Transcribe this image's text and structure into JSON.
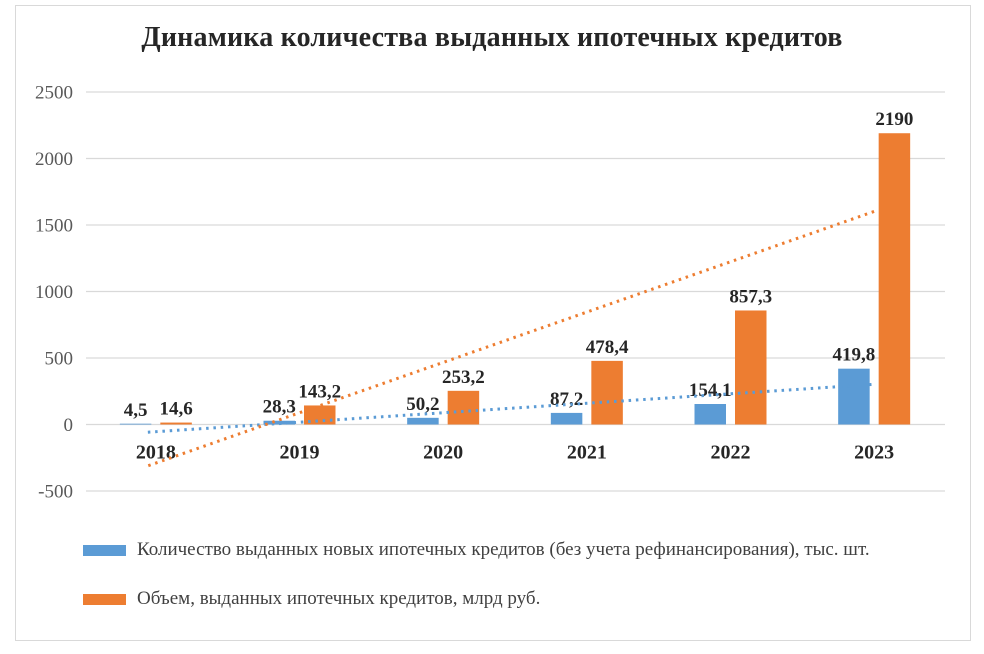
{
  "page": {
    "background": "#ffffff",
    "frame_color": "#d9d9d9"
  },
  "chart_data": {
    "type": "bar",
    "title": "Динамика количества выданных ипотечных кредитов",
    "categories": [
      "2018",
      "2019",
      "2020",
      "2021",
      "2022",
      "2023"
    ],
    "series": [
      {
        "key": "count",
        "name": "Количество выданных новых ипотечных кредитов (без учета рефинансирования), тыс. шт.",
        "color": "#5b9bd5",
        "values": [
          4.5,
          28.3,
          50.2,
          87.2,
          154.1,
          419.8
        ],
        "labels": [
          "4,5",
          "28,3",
          "50,2",
          "87,2",
          "154,1",
          "419,8"
        ],
        "trendline": {
          "start": -54,
          "end": 302
        }
      },
      {
        "key": "volume",
        "name": "Объем, выданных ипотечных кредитов, млрд руб.",
        "color": "#ed7d31",
        "values": [
          14.6,
          143.2,
          253.2,
          478.4,
          857.3,
          2190
        ],
        "labels": [
          "14,6",
          "143,2",
          "253,2",
          "478,4",
          "857,3",
          "2190"
        ],
        "trendline": {
          "start": -290,
          "end": 1602
        }
      }
    ],
    "y_axis": {
      "min": -500,
      "max": 2500,
      "step": 500,
      "ticks": [
        "2500",
        "2000",
        "1500",
        "1000",
        "500",
        "0",
        "-500"
      ]
    },
    "grid": true,
    "legend_position": "bottom-left",
    "decimal_separator": ","
  }
}
